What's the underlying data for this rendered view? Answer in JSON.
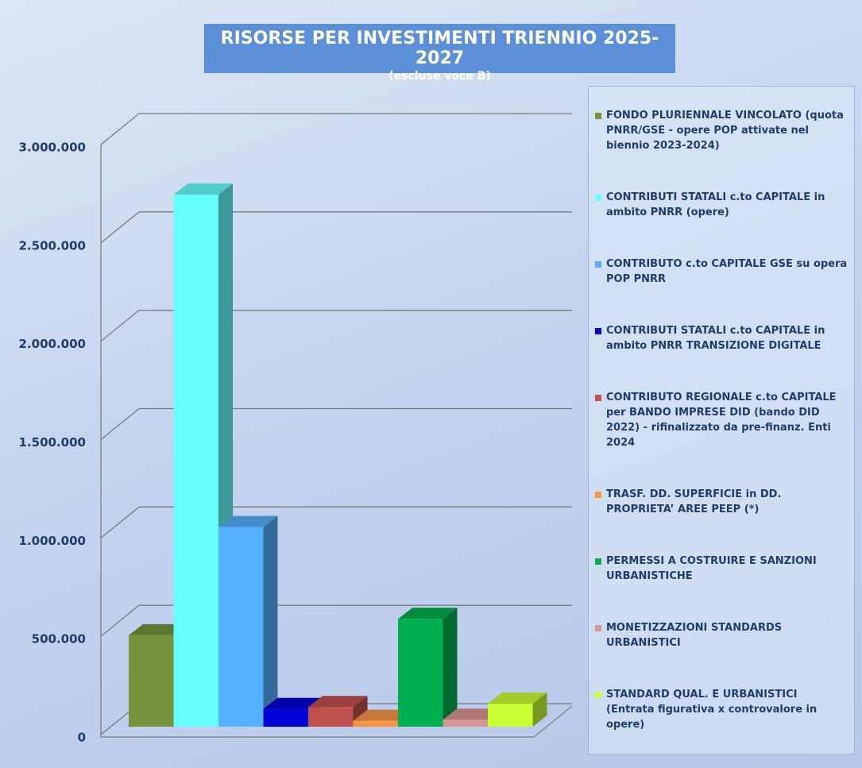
{
  "chart_data": {
    "type": "bar3d",
    "title": "RISORSE PER INVESTIMENTI TRIENNIO 2025-2027",
    "subtitle": "(escluse voce B)",
    "ylim": [
      0,
      3000000
    ],
    "yticks": [
      0,
      {
        "value": 500000,
        "label": "500.000"
      },
      {
        "value": 1000000,
        "label": "1.000.000"
      },
      {
        "value": 1500000,
        "label": "1.500.000"
      },
      {
        "value": 2000000,
        "label": "2.000.000"
      },
      {
        "value": 2500000,
        "label": "2.500.000"
      },
      {
        "value": 3000000,
        "label": "3.000.000"
      }
    ],
    "grid": true,
    "legend": "right",
    "series": [
      {
        "name": "FONDO PLURIENNALE VINCOLATO (quota PNRR/GSE - opere POP attivate nel biennio 2023-2024)",
        "color": "#77933c",
        "values": [
          465000
        ]
      },
      {
        "name": "CONTRIBUTI STATALI c.to CAPITALE in ambito PNRR (opere)",
        "color": "#66ffff",
        "values": [
          2705000
        ]
      },
      {
        "name": "CONTRIBUTO c.to CAPITALE GSE su opera POP PNRR",
        "color": "#55b0ff",
        "values": [
          1015000
        ]
      },
      {
        "name": "CONTRIBUTI STATALI c.to CAPITALE in ambito PNRR TRANSIZIONE DIGITALE",
        "color": "#0000d8",
        "values": [
          90000
        ]
      },
      {
        "name": "CONTRIBUTO REGIONALE c.to CAPITALE per BANDO IMPRESE DID (bando DID 2022) - rifinalizzato da pre-finanz. Enti 2024",
        "color": "#c0504d",
        "values": [
          100000
        ]
      },
      {
        "name": "TRASF. DD. SUPERFICIE in DD. PROPRIETA’ AREE PEEP (*)",
        "color": "#f79646",
        "values": [
          30000
        ]
      },
      {
        "name": "PERMESSI A COSTRUIRE E SANZIONI URBANISTICHE",
        "color": "#00b050",
        "values": [
          548000
        ]
      },
      {
        "name": "MONETIZZAZIONI STANDARDS URBANISTICI",
        "color": "#d99694",
        "values": [
          36000
        ]
      },
      {
        "name": "STANDARD QUAL. E URBANISTICI (Entrata figurativa x controvalore in opere)",
        "color": "#ccff33",
        "values": [
          117000
        ]
      }
    ]
  }
}
